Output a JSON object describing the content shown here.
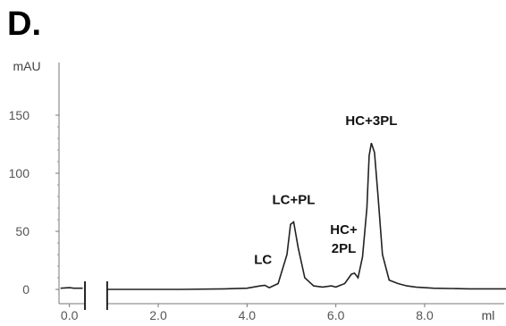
{
  "panel_label": "D.",
  "chart_data": {
    "type": "line",
    "title": "",
    "xlabel": "ml",
    "ylabel": "mAU",
    "xlim": [
      -0.2,
      10.0
    ],
    "ylim": [
      -10,
      165
    ],
    "axis_break_x": [
      0.35,
      0.85
    ],
    "x_ticks": [
      0.0,
      2.0,
      4.0,
      6.0,
      8.0
    ],
    "x_tick_labels": [
      "0.0",
      "2.0",
      "4.0",
      "6.0",
      "8.0"
    ],
    "y_ticks": [
      0,
      50,
      100,
      150
    ],
    "y_tick_labels": [
      "0",
      "50",
      "100",
      "150"
    ],
    "grid": false,
    "series": [
      {
        "color": "#222222",
        "x": [
          -0.2,
          0.0,
          0.1,
          0.3,
          0.85,
          1.5,
          2.5,
          3.5,
          4.0,
          4.3,
          4.4,
          4.5,
          4.7,
          4.9,
          4.98,
          5.05,
          5.15,
          5.3,
          5.5,
          5.7,
          5.9,
          6.0,
          6.2,
          6.35,
          6.42,
          6.5,
          6.6,
          6.7,
          6.75,
          6.8,
          6.87,
          6.95,
          7.05,
          7.2,
          7.4,
          7.6,
          7.8,
          8.2,
          9.0,
          10.0
        ],
        "y": [
          1,
          1.5,
          1,
          1,
          0,
          0,
          0,
          0.5,
          1,
          3,
          3.5,
          1.5,
          5,
          30,
          56,
          58,
          36,
          10,
          3,
          2,
          3,
          2,
          5,
          13,
          14,
          10,
          28,
          70,
          115,
          126,
          118,
          80,
          30,
          8,
          5,
          3,
          2,
          1,
          0.5,
          0.5
        ]
      }
    ],
    "annotations": [
      {
        "text": "LC",
        "x": 4.4,
        "y": 3.5
      },
      {
        "text": "LC+PL",
        "x": 5.05,
        "y": 58
      },
      {
        "text": "HC+",
        "x": 6.42,
        "y": 14
      },
      {
        "text": "2PL",
        "x": 6.42,
        "y": 14
      },
      {
        "text": "HC+3PL",
        "x": 6.8,
        "y": 126
      }
    ]
  }
}
